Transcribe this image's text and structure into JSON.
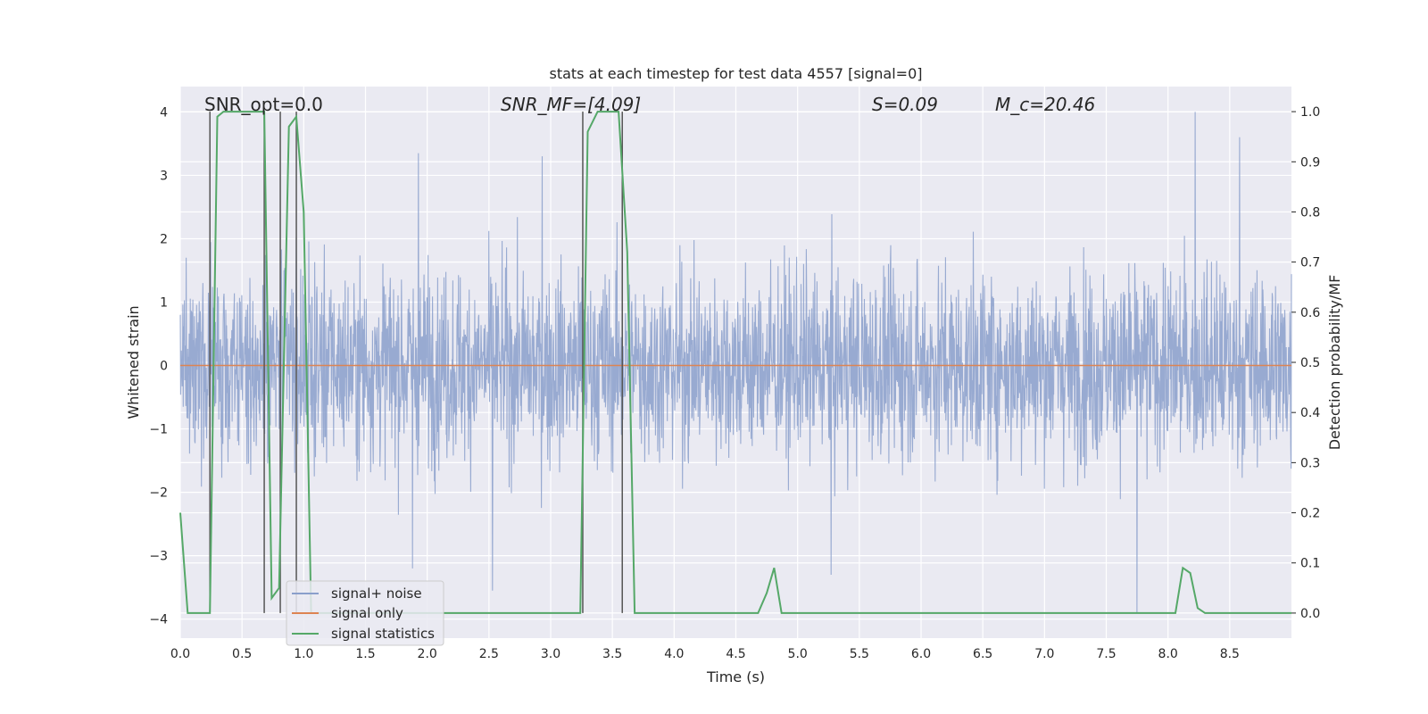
{
  "chart_data": {
    "type": "line",
    "title": "stats at each timestep for test data 4557 [signal=0]",
    "xlabel": "Time (s)",
    "ylabel": "Whitened strain",
    "ylabel_right": "Detection probability/MF",
    "xlim": [
      0.0,
      9.0
    ],
    "ylim": [
      -4.3,
      4.4
    ],
    "ylim_right": [
      -0.05,
      1.05
    ],
    "x_ticks": [
      "0.0",
      "0.5",
      "1.0",
      "1.5",
      "2.0",
      "2.5",
      "3.0",
      "3.5",
      "4.0",
      "4.5",
      "5.0",
      "5.5",
      "6.0",
      "6.5",
      "7.0",
      "7.5",
      "8.0",
      "8.5"
    ],
    "y_ticks": [
      "−4",
      "−3",
      "−2",
      "−1",
      "0",
      "1",
      "2",
      "3",
      "4"
    ],
    "y_ticks_right": [
      "0.0",
      "0.1",
      "0.2",
      "0.3",
      "0.4",
      "0.5",
      "0.6",
      "0.7",
      "0.8",
      "0.9",
      "1.0"
    ],
    "grid": true,
    "legend_position": "lower-left",
    "annotations": {
      "snr_opt": "SNR_opt=0.0",
      "snr_mf": "SNR_MF=[4.09]",
      "s": "S=0.09",
      "mc": "M_c=20.46"
    },
    "series": [
      {
        "name": "signal+ noise",
        "axis": "left",
        "color": "#8a9fcb",
        "description_values": "Gaussian-like whitened noise, mostly within ±1.5, peaks up to ~4.0 (t≈8.2) and down to ~-3.9 (t≈7.75)",
        "notable_peaks": [
          {
            "x": 1.93,
            "y": 3.35
          },
          {
            "x": 2.93,
            "y": 3.3
          },
          {
            "x": 8.22,
            "y": 4.0
          },
          {
            "x": 8.58,
            "y": 3.6
          },
          {
            "x": 1.88,
            "y": -3.2
          },
          {
            "x": 2.53,
            "y": -3.55
          },
          {
            "x": 5.27,
            "y": -3.3
          },
          {
            "x": 7.75,
            "y": -3.9
          }
        ]
      },
      {
        "name": "signal only",
        "axis": "left",
        "color": "#dd8452",
        "x": [
          0.0,
          9.0
        ],
        "y": [
          0.0,
          0.0
        ]
      },
      {
        "name": "signal statistics",
        "axis": "right",
        "color": "#55a868",
        "x": [
          0.0,
          0.06,
          0.12,
          0.18,
          0.24,
          0.3,
          0.35,
          0.42,
          0.5,
          0.56,
          0.62,
          0.68,
          0.74,
          0.8,
          0.88,
          0.94,
          1.0,
          1.06,
          1.1,
          1.2,
          3.0,
          3.24,
          3.3,
          3.38,
          3.45,
          3.55,
          3.62,
          3.68,
          4.5,
          4.68,
          4.75,
          4.81,
          4.87,
          4.94,
          8.0,
          8.06,
          8.12,
          8.18,
          8.24,
          8.3,
          8.6,
          9.0
        ],
        "y": [
          0.2,
          0.0,
          0.0,
          0.0,
          0.0,
          0.99,
          1.0,
          1.0,
          1.0,
          1.0,
          1.0,
          1.0,
          0.03,
          0.05,
          0.97,
          0.99,
          0.8,
          0.0,
          0.0,
          0.0,
          0.0,
          0.0,
          0.96,
          1.0,
          1.0,
          1.0,
          0.72,
          0.0,
          0.0,
          0.0,
          0.04,
          0.09,
          0.0,
          0.0,
          0.0,
          0.0,
          0.09,
          0.08,
          0.01,
          0.0,
          0.0,
          0.0
        ]
      }
    ],
    "vertical_lines_x": [
      0.24,
      0.68,
      0.81,
      0.94,
      3.26,
      3.58
    ]
  }
}
